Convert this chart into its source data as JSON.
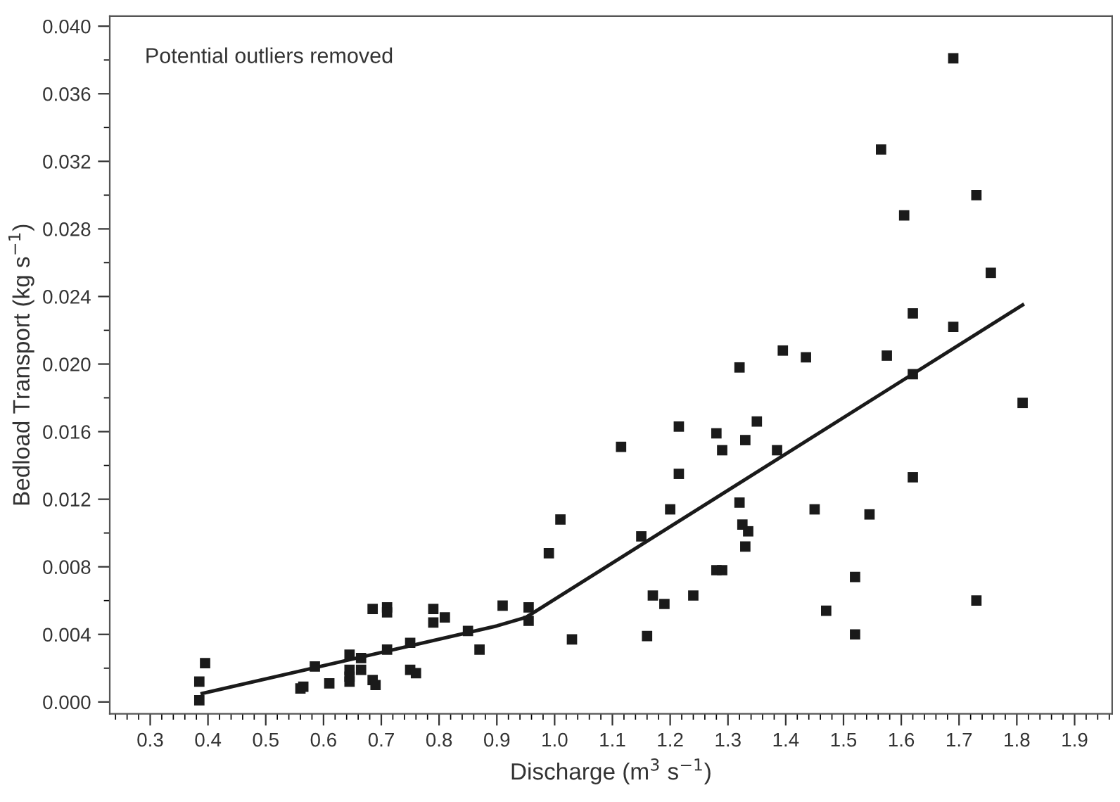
{
  "chart_data": {
    "type": "scatter",
    "xlabel": "Discharge (m$^{3}$ s$^{−1}$)",
    "ylabel": "Bedload Transport (kg s$^{−1}$)",
    "annotations": [
      "Potential outliers removed"
    ],
    "xlim": [
      0.23,
      1.965
    ],
    "ylim": [
      -0.0007,
      0.0406
    ],
    "xticks": [
      0.3,
      0.4,
      0.5,
      0.6,
      0.7,
      0.8,
      0.9,
      {
        "value": 1,
        "label": "1.0"
      },
      1.1,
      1.2,
      1.3,
      1.4,
      1.5,
      1.6,
      1.7,
      1.8,
      1.9
    ],
    "yticks": [
      {
        "value": 0,
        "label": "0.000"
      },
      {
        "value": 0.004,
        "label": "0.004"
      },
      {
        "value": 0.008,
        "label": "0.008"
      },
      {
        "value": 0.012,
        "label": "0.012"
      },
      {
        "value": 0.016,
        "label": "0.016"
      },
      {
        "value": 0.02,
        "label": "0.020"
      },
      {
        "value": 0.024,
        "label": "0.024"
      },
      {
        "value": 0.028,
        "label": "0.028"
      },
      {
        "value": 0.032,
        "label": "0.032"
      },
      {
        "value": 0.036,
        "label": "0.036"
      },
      {
        "value": 0.04,
        "label": "0.040"
      }
    ],
    "grid": false,
    "series": [
      {
        "type": "scatter",
        "color": "#1a1a1a",
        "marker": "square",
        "x": [
          0.385,
          0.385,
          0.395,
          0.56,
          0.565,
          0.585,
          0.61,
          0.645,
          0.645,
          0.645,
          0.645,
          0.665,
          0.665,
          0.685,
          0.685,
          0.69,
          0.71,
          0.71,
          0.71,
          0.75,
          0.75,
          0.76,
          0.79,
          0.79,
          0.81,
          0.85,
          0.87,
          0.91,
          0.955,
          0.955,
          0.99,
          1.01,
          1.03,
          1.115,
          1.15,
          1.16,
          1.17,
          1.19,
          1.2,
          1.215,
          1.215,
          1.24,
          1.28,
          1.28,
          1.29,
          1.29,
          1.32,
          1.32,
          1.325,
          1.33,
          1.33,
          1.335,
          1.35,
          1.385,
          1.395,
          1.435,
          1.45,
          1.47,
          1.52,
          1.52,
          1.545,
          1.565,
          1.575,
          1.605,
          1.62,
          1.62,
          1.62,
          1.69,
          1.69,
          1.73,
          1.73,
          1.755,
          1.81
        ],
        "values": [
          0.0012,
          0.0001,
          0.0023,
          0.0008,
          0.0009,
          0.0021,
          0.0011,
          0.0028,
          0.0019,
          0.0015,
          0.0012,
          0.0026,
          0.0019,
          0.0055,
          0.0013,
          0.001,
          0.0056,
          0.0053,
          0.0031,
          0.0035,
          0.0019,
          0.0017,
          0.0055,
          0.0047,
          0.005,
          0.0042,
          0.0031,
          0.0057,
          0.0056,
          0.0048,
          0.0088,
          0.0108,
          0.0037,
          0.0151,
          0.0098,
          0.0039,
          0.0063,
          0.0058,
          0.0114,
          0.0163,
          0.0135,
          0.0063,
          0.0159,
          0.0078,
          0.0149,
          0.0078,
          0.0198,
          0.0118,
          0.0105,
          0.0155,
          0.0092,
          0.0101,
          0.0166,
          0.0149,
          0.0208,
          0.0204,
          0.0114,
          0.0054,
          0.0074,
          0.004,
          0.0111,
          0.0327,
          0.0205,
          0.0288,
          0.023,
          0.0194,
          0.0133,
          0.0381,
          0.0222,
          0.03,
          0.006,
          0.0254,
          0.0177
        ]
      },
      {
        "type": "line",
        "color": "#1a1a1a",
        "line_style": "solid",
        "marker": "none",
        "x": [
          0.39,
          0.9,
          0.95,
          1.81
        ],
        "values": [
          0.0005,
          0.0045,
          0.005,
          0.0235
        ]
      }
    ]
  }
}
